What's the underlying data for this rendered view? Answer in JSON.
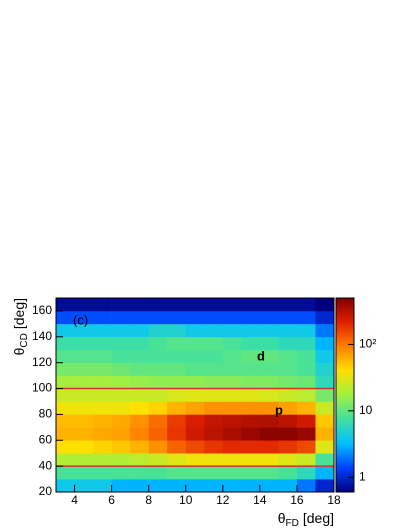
{
  "chart_data": {
    "type": "heatmap",
    "xlabel": {
      "symbol": "θ",
      "sub": "FD",
      "unit": "[deg]"
    },
    "ylabel": {
      "symbol": "θ",
      "sub": "CD",
      "unit": "[deg]"
    },
    "annotations": [
      "(c)",
      "d",
      "p"
    ],
    "xbins": [
      3,
      4,
      5,
      6,
      7,
      8,
      9,
      10,
      11,
      12,
      13,
      14,
      15,
      16,
      17,
      18
    ],
    "ybins": [
      20,
      30,
      40,
      50,
      60,
      70,
      80,
      90,
      100,
      110,
      120,
      130,
      140,
      150,
      160,
      170
    ],
    "values": [
      [
        4,
        4,
        4,
        3,
        3,
        3,
        3,
        3,
        3,
        3,
        3,
        3,
        3,
        2,
        1
      ],
      [
        8,
        8,
        8,
        8,
        8,
        8,
        9,
        9,
        9,
        9,
        9,
        9,
        8,
        6,
        3
      ],
      [
        20,
        20,
        20,
        20,
        22,
        25,
        30,
        35,
        35,
        35,
        35,
        35,
        30,
        25,
        8
      ],
      [
        40,
        40,
        45,
        50,
        60,
        80,
        120,
        150,
        180,
        200,
        200,
        200,
        180,
        150,
        30
      ],
      [
        60,
        60,
        65,
        70,
        90,
        120,
        180,
        250,
        300,
        350,
        400,
        450,
        450,
        400,
        60
      ],
      [
        55,
        55,
        60,
        65,
        80,
        110,
        170,
        230,
        280,
        300,
        320,
        330,
        300,
        250,
        50
      ],
      [
        35,
        35,
        35,
        35,
        40,
        45,
        60,
        70,
        80,
        80,
        80,
        80,
        70,
        60,
        25
      ],
      [
        25,
        25,
        25,
        25,
        25,
        25,
        28,
        30,
        30,
        30,
        30,
        28,
        25,
        22,
        12
      ],
      [
        18,
        18,
        18,
        17,
        16,
        15,
        15,
        15,
        14,
        14,
        13,
        13,
        12,
        11,
        6
      ],
      [
        12,
        12,
        12,
        11,
        10,
        10,
        10,
        9,
        9,
        9,
        9,
        9,
        9,
        8,
        5
      ],
      [
        9,
        9,
        9,
        8,
        8,
        8,
        8,
        8,
        8,
        9,
        10,
        10,
        9,
        8,
        4
      ],
      [
        7,
        7,
        7,
        7,
        7,
        8,
        9,
        9,
        9,
        8,
        7,
        7,
        6,
        6,
        3
      ],
      [
        4,
        4,
        4,
        4,
        4,
        5,
        5,
        4,
        4,
        4,
        4,
        4,
        4,
        4,
        2
      ],
      [
        1.5,
        1.5,
        1.5,
        1.5,
        1.5,
        1.5,
        1.5,
        1.5,
        1.5,
        1.5,
        1.5,
        1.5,
        1.5,
        1.5,
        1
      ],
      [
        0.7,
        0.7,
        0.7,
        0.7,
        0.7,
        0.7,
        0.7,
        0.7,
        0.7,
        0.7,
        0.7,
        0.7,
        0.7,
        0.7,
        0.6
      ]
    ],
    "xlim": [
      3,
      18
    ],
    "ylim": [
      20,
      170
    ],
    "zlim": [
      0.6,
      500
    ],
    "zlog": true,
    "xticks": [
      4,
      6,
      8,
      10,
      12,
      14,
      16,
      18
    ],
    "yticks": [
      20,
      40,
      60,
      80,
      100,
      120,
      140,
      160
    ],
    "zticks": [
      1,
      10,
      {
        "value": 100,
        "label": "10²"
      }
    ],
    "colormap": [
      "#00007f",
      "#0040ff",
      "#00c0ff",
      "#40e0a0",
      "#a0f040",
      "#ffe000",
      "#ff8000",
      "#e02000",
      "#800000"
    ],
    "hlines": [
      40,
      100
    ],
    "hline_color": "#d83030"
  }
}
